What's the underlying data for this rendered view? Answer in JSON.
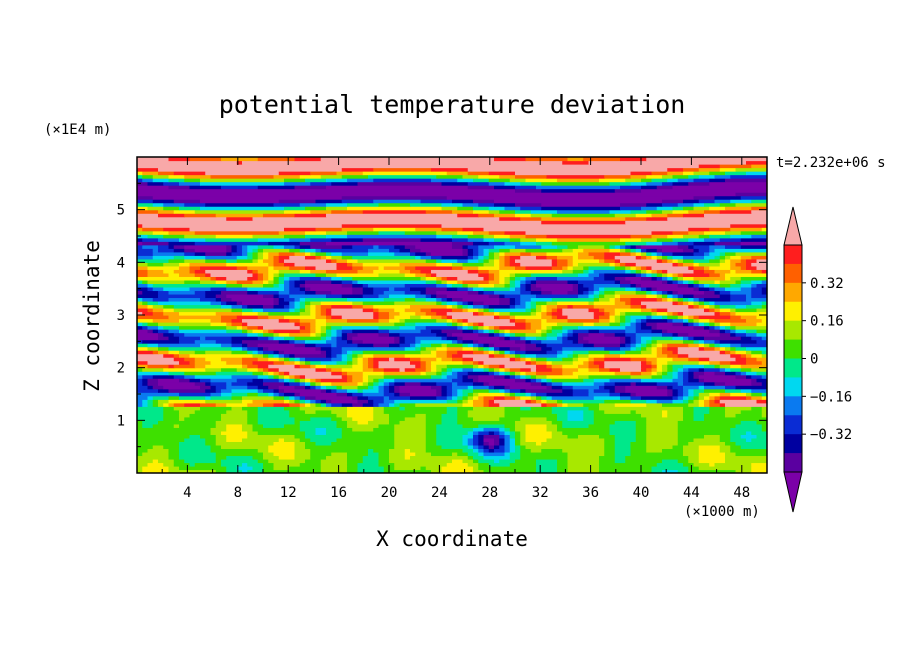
{
  "chart_data": {
    "type": "heatmap",
    "title": "potential temperature deviation",
    "xlabel": "X coordinate",
    "ylabel": "Z coordinate",
    "x_unit": "(×1000 m)",
    "y_unit": "(×1E4 m)",
    "time_label": "t=2.232e+06 s",
    "xlim": [
      0,
      50
    ],
    "ylim": [
      0,
      6
    ],
    "x_ticks": [
      "4",
      "8",
      "12",
      "16",
      "20",
      "24",
      "28",
      "32",
      "36",
      "40",
      "44",
      "48"
    ],
    "y_ticks": [
      "1",
      "2",
      "3",
      "4",
      "5"
    ],
    "colorbar": {
      "levels": [
        -0.48,
        -0.4,
        -0.32,
        -0.24,
        -0.16,
        -0.08,
        0,
        0.08,
        0.16,
        0.24,
        0.32,
        0.4,
        0.48
      ],
      "colors": [
        "#7b00a8",
        "#5a00a0",
        "#0000a0",
        "#0a2cd4",
        "#0a7af0",
        "#00d8f0",
        "#00e88a",
        "#3ee000",
        "#a8e800",
        "#fff000",
        "#ffa800",
        "#ff6000",
        "#ff1e1e",
        "#f8a8a8"
      ],
      "labels": [
        "0.32",
        "0.16",
        "0",
        "-0.16",
        "-0.32"
      ],
      "label_values": [
        0.32,
        0.16,
        0,
        -0.16,
        -0.32
      ],
      "extend": "both"
    },
    "description_bands": [
      {
        "z_range": [
          0,
          1.3
        ],
        "dominant_range": [
          -0.08,
          0.16
        ]
      },
      {
        "z_range": [
          1.3,
          4.3
        ],
        "dominant_range": [
          -0.48,
          0.48
        ]
      },
      {
        "z_range": [
          4.3,
          6.0
        ],
        "dominant_range": [
          -0.48,
          0.48
        ]
      }
    ]
  }
}
